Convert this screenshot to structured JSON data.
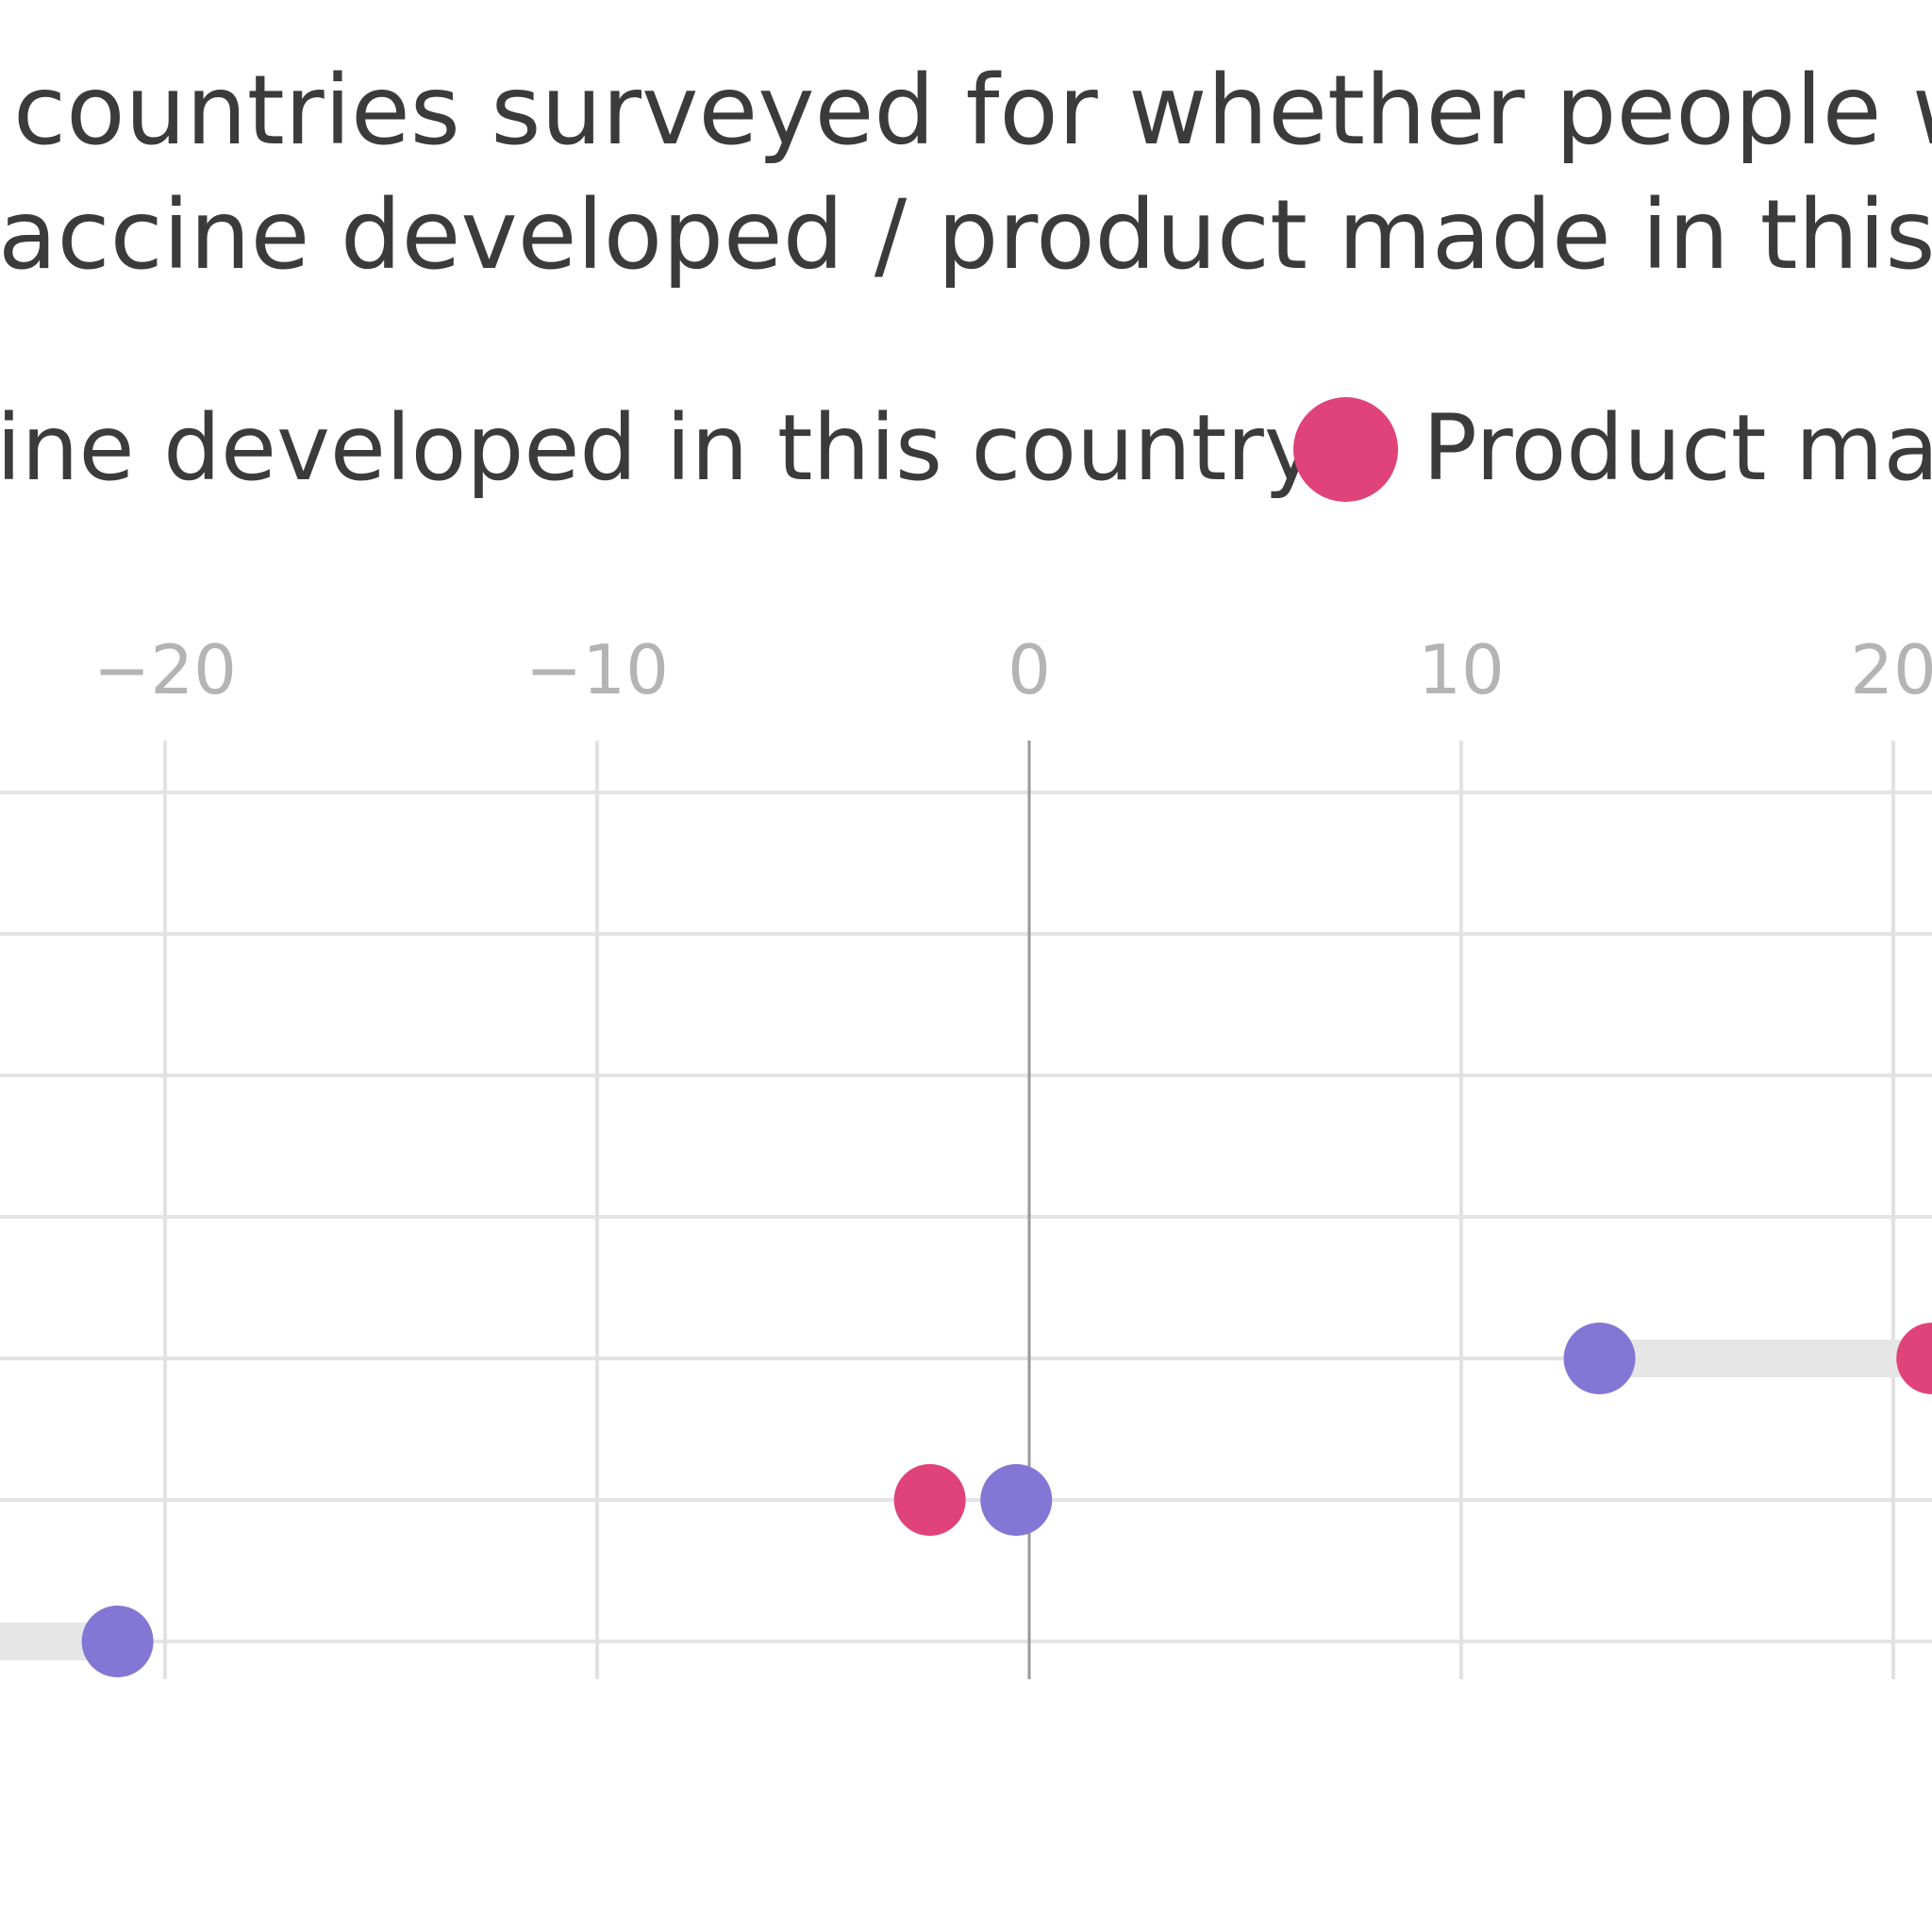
{
  "chart_data": {
    "type": "scatter",
    "subtype": "dumbbell",
    "title_lines": [
      "countries surveyed for whether people would",
      "accine developed / product made in this count"
    ],
    "xlabel": "",
    "ylabel": "",
    "x_ticks": [
      -20,
      -10,
      0,
      10,
      20
    ],
    "x_tick_labels": [
      "−20",
      "−10",
      "0",
      "10",
      "20"
    ],
    "xlim": [
      -23.8,
      20.8
    ],
    "grid": true,
    "legend_position": "top",
    "legend": [
      {
        "label": "ine developed in this country",
        "color": "#8476d4",
        "marker_visible": false
      },
      {
        "label": "Product mad",
        "color": "#e0427a",
        "marker_visible": true
      }
    ],
    "series": [
      {
        "name": "ine developed in this country",
        "color": "#8476d4",
        "points": [
          {
            "row": 4,
            "x": 13.2
          },
          {
            "row": 5,
            "x": -0.3
          },
          {
            "row": 6,
            "x": -21.1
          }
        ]
      },
      {
        "name": "Product mad",
        "color": "#e0427a",
        "points": [
          {
            "row": 4,
            "x": 20.9
          },
          {
            "row": 5,
            "x": -2.3
          }
        ]
      }
    ],
    "connectors": [
      {
        "row": 4,
        "from": 13.2,
        "to": 20.9
      },
      {
        "row": 6,
        "from": -24.5,
        "to": -21.1
      }
    ],
    "rows": 7
  }
}
